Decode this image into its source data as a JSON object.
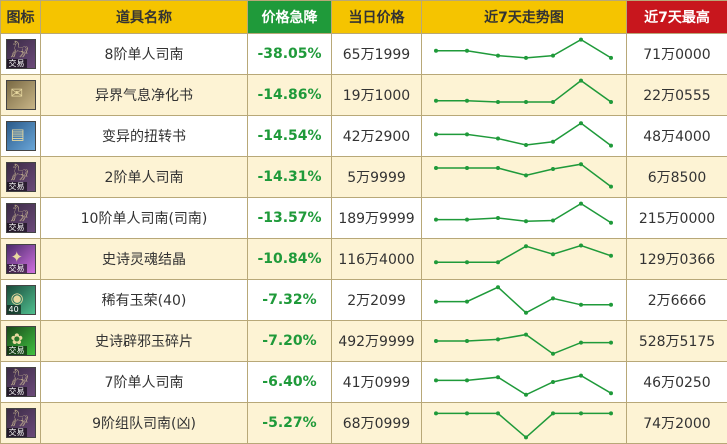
{
  "header": {
    "icon": "图标",
    "name": "道具名称",
    "drop": "价格急降",
    "price": "当日价格",
    "trend": "近7天走势图",
    "max": "近7天最高"
  },
  "colors": {
    "accent_yellow": "#f5c400",
    "accent_green": "#1f9a3a",
    "accent_red": "#c8161d",
    "row_alt": "#fdf3d4"
  },
  "rows": [
    {
      "icon": "mount-icon",
      "badge": "交易",
      "name": "8阶单人司南",
      "drop": "-38.05%",
      "price": "65万1999",
      "max": "71万0000",
      "trend": [
        0.4,
        0.4,
        0.55,
        0.62,
        0.55,
        0.05,
        0.62
      ]
    },
    {
      "icon": "scroll-icon",
      "badge": "",
      "name": "异界气息净化书",
      "drop": "-14.86%",
      "price": "19万1000",
      "max": "22万0555",
      "trend": [
        0.68,
        0.68,
        0.72,
        0.72,
        0.72,
        0.05,
        0.72
      ]
    },
    {
      "icon": "book-icon",
      "badge": "",
      "name": "变异的扭转书",
      "drop": "-14.54%",
      "price": "42万2900",
      "max": "48万4000",
      "trend": [
        0.45,
        0.45,
        0.58,
        0.78,
        0.68,
        0.1,
        0.8
      ]
    },
    {
      "icon": "mount-icon",
      "badge": "交易",
      "name": "2阶单人司南",
      "drop": "-14.31%",
      "price": "5万9999",
      "max": "6万8500",
      "trend": [
        0.22,
        0.22,
        0.22,
        0.45,
        0.25,
        0.1,
        0.8
      ]
    },
    {
      "icon": "mount-icon",
      "badge": "交易",
      "name": "10阶单人司南(司南)",
      "drop": "-13.57%",
      "price": "189万9999",
      "max": "215万0000",
      "trend": [
        0.55,
        0.55,
        0.5,
        0.6,
        0.58,
        0.05,
        0.65
      ]
    },
    {
      "icon": "crystal-icon",
      "badge": "交易",
      "name": "史诗灵魂结晶",
      "drop": "-10.84%",
      "price": "116万4000",
      "max": "129万0366",
      "trend": [
        0.6,
        0.6,
        0.6,
        0.1,
        0.35,
        0.08,
        0.4
      ]
    },
    {
      "icon": "gem-icon",
      "badge": "40",
      "name": "稀有玉荣(40)",
      "drop": "-7.32%",
      "price": "2万2099",
      "max": "2万6666",
      "trend": [
        0.55,
        0.55,
        0.1,
        0.9,
        0.45,
        0.65,
        0.65
      ]
    },
    {
      "icon": "jade-icon",
      "badge": "交易",
      "name": "史诗辟邪玉碎片",
      "drop": "-7.20%",
      "price": "492万9999",
      "max": "528万5175",
      "trend": [
        0.5,
        0.5,
        0.45,
        0.3,
        0.9,
        0.55,
        0.55
      ]
    },
    {
      "icon": "mount-icon",
      "badge": "交易",
      "name": "7阶单人司南",
      "drop": "-6.40%",
      "price": "41万0999",
      "max": "46万0250",
      "trend": [
        0.45,
        0.45,
        0.35,
        0.9,
        0.5,
        0.3,
        0.85
      ]
    },
    {
      "icon": "mount-icon",
      "badge": "交易",
      "name": "9阶组队司南(凶)",
      "drop": "-5.27%",
      "price": "68万0999",
      "max": "74万2000",
      "trend": [
        0.2,
        0.2,
        0.2,
        0.95,
        0.2,
        0.2,
        0.2
      ]
    }
  ]
}
